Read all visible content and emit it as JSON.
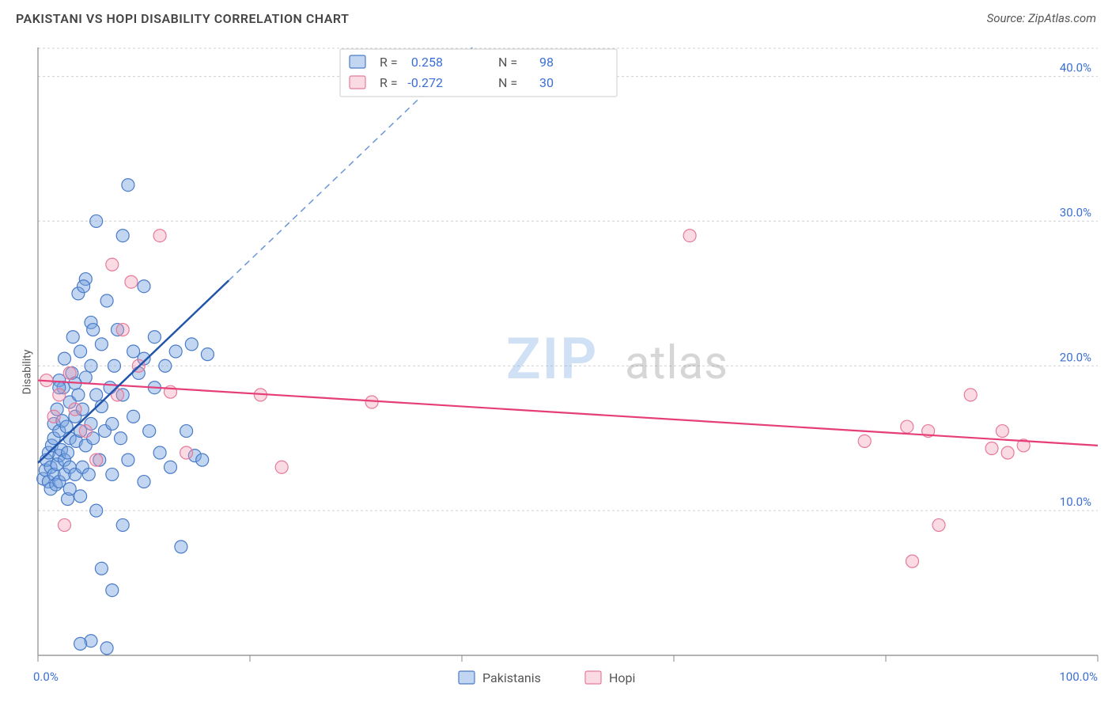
{
  "title": "PAKISTANI VS HOPI DISABILITY CORRELATION CHART",
  "source_label": "Source: ZipAtlas.com",
  "ylabel": "Disability",
  "watermark": {
    "a": "ZIP",
    "b": "atlas"
  },
  "chart": {
    "type": "scatter",
    "background_color": "#ffffff",
    "grid_color": "#d0d0d0",
    "axis_color": "#888888",
    "tick_label_color": "#3b6fd6",
    "font_family": "Arial",
    "marker_radius": 8,
    "xlim": [
      0,
      100
    ],
    "ylim": [
      0,
      42
    ],
    "xticks": [
      0,
      20,
      40,
      60,
      80,
      100
    ],
    "xtick_labels": [
      "0.0%",
      "",
      "",
      "",
      "",
      "100.0%"
    ],
    "yticks": [
      10,
      20,
      30,
      40
    ],
    "ytick_labels": [
      "10.0%",
      "20.0%",
      "30.0%",
      "40.0%"
    ],
    "legend": {
      "items": [
        {
          "label": "Pakistanis",
          "swatch": "blue"
        },
        {
          "label": "Hopi",
          "swatch": "pink"
        }
      ]
    },
    "stats_box": {
      "rows": [
        {
          "swatch": "blue",
          "r_label": "R =",
          "r_value": "0.258",
          "n_label": "N =",
          "n_value": "98"
        },
        {
          "swatch": "pink",
          "r_label": "R =",
          "r_value": "-0.272",
          "n_label": "N =",
          "n_value": "30"
        }
      ]
    },
    "series": [
      {
        "name": "Pakistanis",
        "color_fill": "rgba(120,165,225,0.45)",
        "color_stroke": "#4a7bc8",
        "marker": "circle",
        "trend": {
          "slope": 0.7,
          "intercept": 13.3,
          "solid_xmax": 18,
          "dash_xmax": 60,
          "solid_color": "#2255aa",
          "dash_color": "#6a95d8"
        },
        "points": [
          [
            0.5,
            12.2
          ],
          [
            0.7,
            12.8
          ],
          [
            0.8,
            13.5
          ],
          [
            1.0,
            12.0
          ],
          [
            1.0,
            14.0
          ],
          [
            1.2,
            11.5
          ],
          [
            1.2,
            13.0
          ],
          [
            1.3,
            14.5
          ],
          [
            1.5,
            12.5
          ],
          [
            1.5,
            15.0
          ],
          [
            1.5,
            16.0
          ],
          [
            1.7,
            11.8
          ],
          [
            1.8,
            13.2
          ],
          [
            1.8,
            17.0
          ],
          [
            2.0,
            12.0
          ],
          [
            2.0,
            13.8
          ],
          [
            2.0,
            15.5
          ],
          [
            2.0,
            19.0
          ],
          [
            2.2,
            14.2
          ],
          [
            2.3,
            16.2
          ],
          [
            2.4,
            18.5
          ],
          [
            2.5,
            12.5
          ],
          [
            2.5,
            13.5
          ],
          [
            2.5,
            20.5
          ],
          [
            2.7,
            15.8
          ],
          [
            2.8,
            10.8
          ],
          [
            2.8,
            14.0
          ],
          [
            3.0,
            11.5
          ],
          [
            3.0,
            13.0
          ],
          [
            3.0,
            15.0
          ],
          [
            3.0,
            17.5
          ],
          [
            3.2,
            19.5
          ],
          [
            3.3,
            22.0
          ],
          [
            3.5,
            12.5
          ],
          [
            3.5,
            16.5
          ],
          [
            3.6,
            14.8
          ],
          [
            3.8,
            18.0
          ],
          [
            3.8,
            25.0
          ],
          [
            4.0,
            11.0
          ],
          [
            4.0,
            15.5
          ],
          [
            4.0,
            21.0
          ],
          [
            4.2,
            13.0
          ],
          [
            4.2,
            17.0
          ],
          [
            4.5,
            14.5
          ],
          [
            4.5,
            19.2
          ],
          [
            4.5,
            26.0
          ],
          [
            4.8,
            12.5
          ],
          [
            5.0,
            16.0
          ],
          [
            5.0,
            20.0
          ],
          [
            5.0,
            23.0
          ],
          [
            5.2,
            15.0
          ],
          [
            5.5,
            10.0
          ],
          [
            5.5,
            18.0
          ],
          [
            5.5,
            30.0
          ],
          [
            5.8,
            13.5
          ],
          [
            6.0,
            6.0
          ],
          [
            6.0,
            17.2
          ],
          [
            6.0,
            21.5
          ],
          [
            6.3,
            15.5
          ],
          [
            6.5,
            24.5
          ],
          [
            6.8,
            18.5
          ],
          [
            7.0,
            4.5
          ],
          [
            7.0,
            12.5
          ],
          [
            7.0,
            16.0
          ],
          [
            7.2,
            20.0
          ],
          [
            7.5,
            22.5
          ],
          [
            7.8,
            15.0
          ],
          [
            8.0,
            9.0
          ],
          [
            8.0,
            18.0
          ],
          [
            8.0,
            29.0
          ],
          [
            8.5,
            13.5
          ],
          [
            8.5,
            32.5
          ],
          [
            9.0,
            16.5
          ],
          [
            9.0,
            21.0
          ],
          [
            9.5,
            19.5
          ],
          [
            10.0,
            12.0
          ],
          [
            10.0,
            20.5
          ],
          [
            10.0,
            25.5
          ],
          [
            10.5,
            15.5
          ],
          [
            11.0,
            18.5
          ],
          [
            11.0,
            22.0
          ],
          [
            11.5,
            14.0
          ],
          [
            12.0,
            20.0
          ],
          [
            12.5,
            13.0
          ],
          [
            13.0,
            21.0
          ],
          [
            13.5,
            7.5
          ],
          [
            14.0,
            15.5
          ],
          [
            14.5,
            21.5
          ],
          [
            14.8,
            13.8
          ],
          [
            15.5,
            13.5
          ],
          [
            16.0,
            20.8
          ],
          [
            5.0,
            1.0
          ],
          [
            6.5,
            0.5
          ],
          [
            4.0,
            0.8
          ],
          [
            2.0,
            18.5
          ],
          [
            3.5,
            18.8
          ],
          [
            4.3,
            25.5
          ],
          [
            5.2,
            22.5
          ]
        ]
      },
      {
        "name": "Hopi",
        "color_fill": "rgba(240,150,175,0.35)",
        "color_stroke": "#e67a9a",
        "marker": "circle",
        "trend": {
          "slope": -0.045,
          "intercept": 19.0,
          "solid_xmax": 100,
          "solid_color": "#e63e78"
        },
        "points": [
          [
            0.8,
            19.0
          ],
          [
            1.5,
            16.5
          ],
          [
            2.0,
            18.0
          ],
          [
            2.5,
            9.0
          ],
          [
            3.0,
            19.5
          ],
          [
            3.5,
            17.0
          ],
          [
            4.5,
            15.5
          ],
          [
            5.5,
            13.5
          ],
          [
            7.0,
            27.0
          ],
          [
            7.5,
            18.0
          ],
          [
            8.0,
            22.5
          ],
          [
            8.8,
            25.8
          ],
          [
            9.5,
            20.0
          ],
          [
            11.5,
            29.0
          ],
          [
            12.5,
            18.2
          ],
          [
            14.0,
            14.0
          ],
          [
            21.0,
            18.0
          ],
          [
            23.0,
            13.0
          ],
          [
            31.5,
            17.5
          ],
          [
            61.5,
            29.0
          ],
          [
            78.0,
            14.8
          ],
          [
            82.0,
            15.8
          ],
          [
            84.0,
            15.5
          ],
          [
            85.0,
            9.0
          ],
          [
            88.0,
            18.0
          ],
          [
            90.0,
            14.3
          ],
          [
            91.0,
            15.5
          ],
          [
            91.5,
            14.0
          ],
          [
            93.0,
            14.5
          ],
          [
            82.5,
            6.5
          ]
        ]
      }
    ]
  }
}
